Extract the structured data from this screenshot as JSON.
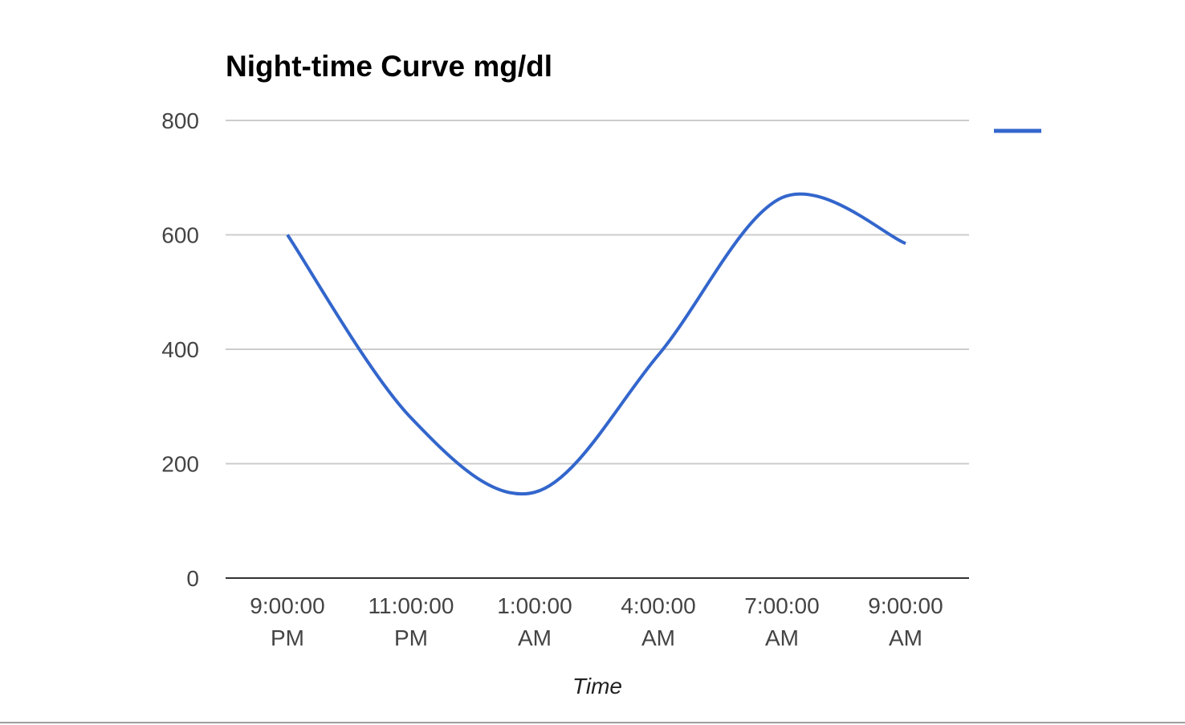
{
  "chart_data": {
    "type": "line",
    "title": "Night-time Curve mg/dl",
    "xlabel": "Time",
    "ylabel": "",
    "categories": [
      [
        "9:00:00",
        "PM"
      ],
      [
        "11:00:00",
        "PM"
      ],
      [
        "1:00:00",
        "AM"
      ],
      [
        "4:00:00",
        "AM"
      ],
      [
        "7:00:00",
        "AM"
      ],
      [
        "9:00:00",
        "AM"
      ]
    ],
    "series": [
      {
        "values": [
          600,
          280,
          150,
          390,
          665,
          585
        ]
      }
    ],
    "ylim": [
      0,
      800
    ],
    "yticks": [
      "0",
      "200",
      "400",
      "600",
      "800"
    ],
    "grid": true,
    "smooth": true,
    "legend_position": "right",
    "colors": {
      "series": "#3366cc",
      "grid": "#cccccc",
      "baseline": "#333333",
      "bottom_rule": "#9e9e9e"
    }
  }
}
